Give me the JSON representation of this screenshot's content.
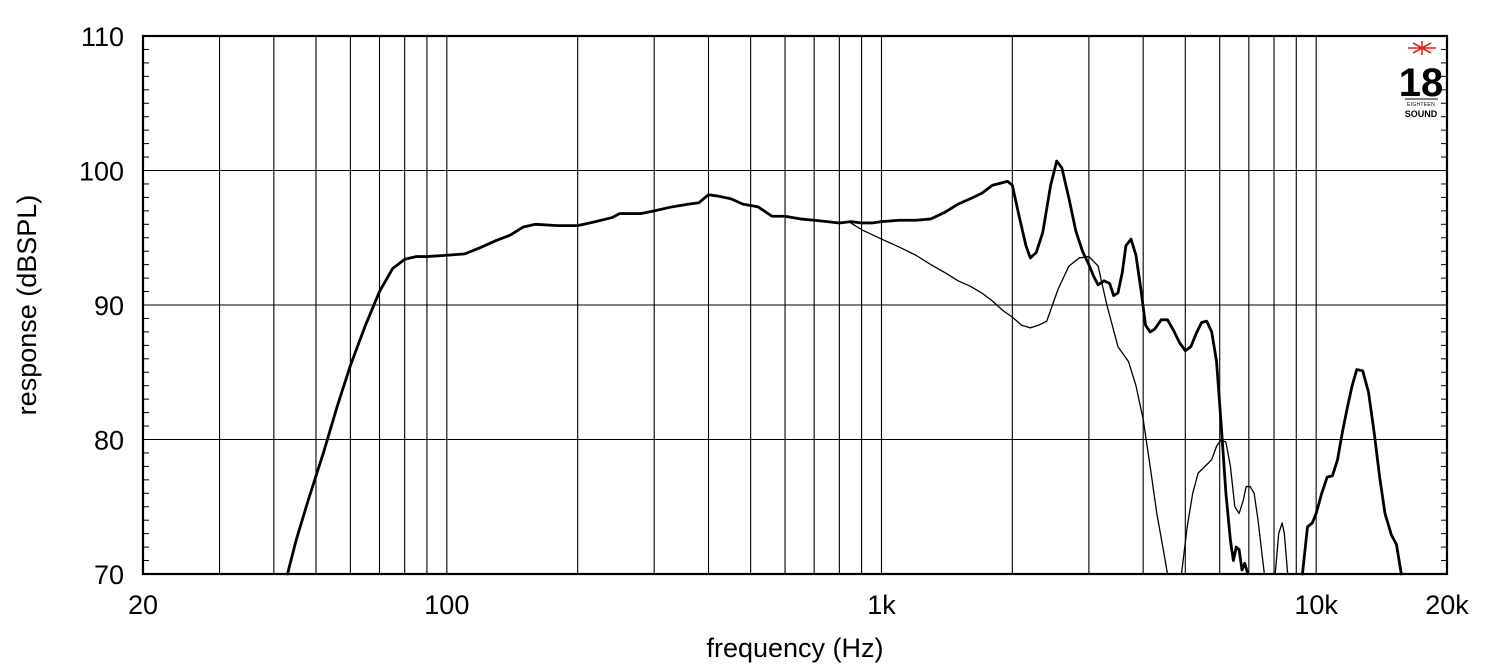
{
  "chart_data": {
    "type": "line",
    "title": "",
    "xlabel": "frequency (Hz)",
    "ylabel": "response (dBSPL)",
    "xscale": "log",
    "xlim": [
      20,
      20000
    ],
    "ylim": [
      70,
      110
    ],
    "x_ticks": [
      {
        "value": 20,
        "label": "20"
      },
      {
        "value": 100,
        "label": "100"
      },
      {
        "value": 1000,
        "label": "1k"
      },
      {
        "value": 10000,
        "label": "10k"
      },
      {
        "value": 20000,
        "label": "20k"
      }
    ],
    "y_ticks": [
      {
        "value": 70,
        "label": "70"
      },
      {
        "value": 80,
        "label": "80"
      },
      {
        "value": 90,
        "label": "90"
      },
      {
        "value": 100,
        "label": "100"
      },
      {
        "value": 110,
        "label": "110"
      }
    ],
    "grid": true,
    "series": [
      {
        "style": "thick",
        "color": "#000000",
        "points": [
          [
            43,
            70
          ],
          [
            45,
            72.5
          ],
          [
            48,
            75.5
          ],
          [
            52,
            79
          ],
          [
            56,
            82.5
          ],
          [
            60,
            85.5
          ],
          [
            65,
            88.5
          ],
          [
            70,
            91
          ],
          [
            75,
            92.7
          ],
          [
            80,
            93.4
          ],
          [
            85,
            93.6
          ],
          [
            90,
            93.6
          ],
          [
            100,
            93.7
          ],
          [
            110,
            93.8
          ],
          [
            120,
            94.3
          ],
          [
            130,
            94.8
          ],
          [
            140,
            95.2
          ],
          [
            150,
            95.8
          ],
          [
            160,
            96
          ],
          [
            180,
            95.9
          ],
          [
            200,
            95.9
          ],
          [
            220,
            96.2
          ],
          [
            240,
            96.5
          ],
          [
            250,
            96.8
          ],
          [
            280,
            96.8
          ],
          [
            300,
            97
          ],
          [
            330,
            97.3
          ],
          [
            360,
            97.5
          ],
          [
            380,
            97.6
          ],
          [
            400,
            98.2
          ],
          [
            420,
            98.1
          ],
          [
            450,
            97.9
          ],
          [
            480,
            97.5
          ],
          [
            520,
            97.3
          ],
          [
            560,
            96.6
          ],
          [
            600,
            96.6
          ],
          [
            650,
            96.4
          ],
          [
            700,
            96.3
          ],
          [
            750,
            96.2
          ],
          [
            800,
            96.1
          ],
          [
            850,
            96.2
          ],
          [
            900,
            96.1
          ],
          [
            950,
            96.1
          ],
          [
            1000,
            96.2
          ],
          [
            1100,
            96.3
          ],
          [
            1200,
            96.3
          ],
          [
            1300,
            96.4
          ],
          [
            1400,
            96.9
          ],
          [
            1500,
            97.5
          ],
          [
            1600,
            97.9
          ],
          [
            1700,
            98.3
          ],
          [
            1800,
            98.9
          ],
          [
            1900,
            99.1
          ],
          [
            1950,
            99.2
          ],
          [
            2000,
            98.9
          ],
          [
            2080,
            96.4
          ],
          [
            2150,
            94.4
          ],
          [
            2200,
            93.5
          ],
          [
            2270,
            93.9
          ],
          [
            2350,
            95.4
          ],
          [
            2450,
            98.9
          ],
          [
            2530,
            100.7
          ],
          [
            2600,
            100.2
          ],
          [
            2700,
            97.9
          ],
          [
            2800,
            95.5
          ],
          [
            2900,
            94
          ],
          [
            3000,
            93
          ],
          [
            3080,
            92.1
          ],
          [
            3150,
            91.5
          ],
          [
            3250,
            91.8
          ],
          [
            3350,
            91.6
          ],
          [
            3420,
            90.7
          ],
          [
            3500,
            90.9
          ],
          [
            3580,
            92.4
          ],
          [
            3650,
            94.4
          ],
          [
            3750,
            94.9
          ],
          [
            3850,
            93.7
          ],
          [
            3950,
            91.2
          ],
          [
            4050,
            88.5
          ],
          [
            4150,
            88
          ],
          [
            4250,
            88.2
          ],
          [
            4400,
            88.9
          ],
          [
            4550,
            88.9
          ],
          [
            4700,
            88.1
          ],
          [
            4850,
            87.2
          ],
          [
            5000,
            86.6
          ],
          [
            5150,
            86.9
          ],
          [
            5300,
            87.9
          ],
          [
            5450,
            88.7
          ],
          [
            5600,
            88.8
          ],
          [
            5750,
            88
          ],
          [
            5900,
            85.8
          ],
          [
            6050,
            81
          ],
          [
            6200,
            76
          ],
          [
            6350,
            72.5
          ],
          [
            6450,
            71
          ],
          [
            6550,
            72
          ],
          [
            6650,
            71.8
          ],
          [
            6750,
            70.3
          ],
          [
            6850,
            70.8
          ],
          [
            6950,
            70.1
          ]
        ]
      },
      {
        "style": "thick",
        "color": "#000000",
        "points": [
          [
            9300,
            70
          ],
          [
            9550,
            73.5
          ],
          [
            9800,
            73.8
          ],
          [
            10000,
            74.5
          ],
          [
            10300,
            76
          ],
          [
            10600,
            77.2
          ],
          [
            10900,
            77.3
          ],
          [
            11200,
            78.5
          ],
          [
            11500,
            80.6
          ],
          [
            11800,
            82.4
          ],
          [
            12100,
            84
          ],
          [
            12400,
            85.2
          ],
          [
            12800,
            85.1
          ],
          [
            13200,
            83.5
          ],
          [
            13600,
            80.5
          ],
          [
            14000,
            77.2
          ],
          [
            14400,
            74.5
          ],
          [
            14900,
            72.9
          ],
          [
            15300,
            72.2
          ],
          [
            15700,
            70
          ]
        ]
      },
      {
        "style": "thin",
        "color": "#000000",
        "points": [
          [
            850,
            96.1
          ],
          [
            900,
            95.6
          ],
          [
            1000,
            94.9
          ],
          [
            1100,
            94.3
          ],
          [
            1200,
            93.7
          ],
          [
            1300,
            93
          ],
          [
            1400,
            92.4
          ],
          [
            1500,
            91.8
          ],
          [
            1600,
            91.4
          ],
          [
            1700,
            90.9
          ],
          [
            1800,
            90.3
          ],
          [
            1900,
            89.6
          ],
          [
            2000,
            89.1
          ],
          [
            2100,
            88.5
          ],
          [
            2200,
            88.3
          ],
          [
            2300,
            88.5
          ],
          [
            2400,
            88.8
          ],
          [
            2550,
            91.2
          ],
          [
            2700,
            92.9
          ],
          [
            2850,
            93.5
          ],
          [
            3000,
            93.6
          ],
          [
            3150,
            92.9
          ],
          [
            3300,
            90
          ],
          [
            3500,
            86.9
          ],
          [
            3700,
            85.8
          ],
          [
            3850,
            84
          ],
          [
            4000,
            81.5
          ],
          [
            4150,
            78
          ],
          [
            4300,
            74.5
          ],
          [
            4450,
            71.8
          ],
          [
            4550,
            70
          ]
        ]
      },
      {
        "style": "thin",
        "color": "#000000",
        "points": [
          [
            4900,
            70
          ],
          [
            5050,
            73.5
          ],
          [
            5200,
            76
          ],
          [
            5350,
            77.5
          ],
          [
            5550,
            78
          ],
          [
            5750,
            78.5
          ],
          [
            5900,
            79.5
          ],
          [
            6050,
            80
          ],
          [
            6200,
            79.8
          ],
          [
            6350,
            78
          ],
          [
            6500,
            75
          ],
          [
            6650,
            74.5
          ],
          [
            6800,
            75.5
          ],
          [
            6900,
            76.5
          ],
          [
            7050,
            76.5
          ],
          [
            7200,
            76
          ],
          [
            7350,
            74
          ],
          [
            7600,
            70
          ]
        ]
      },
      {
        "style": "thin",
        "color": "#000000",
        "points": [
          [
            8050,
            70
          ],
          [
            8200,
            73
          ],
          [
            8350,
            73.8
          ],
          [
            8450,
            73
          ],
          [
            8600,
            70
          ]
        ]
      }
    ]
  },
  "logo": {
    "number": "18",
    "small_text": "EIGHTEEN",
    "word": "SOUND",
    "star_color": "#e2231a"
  }
}
